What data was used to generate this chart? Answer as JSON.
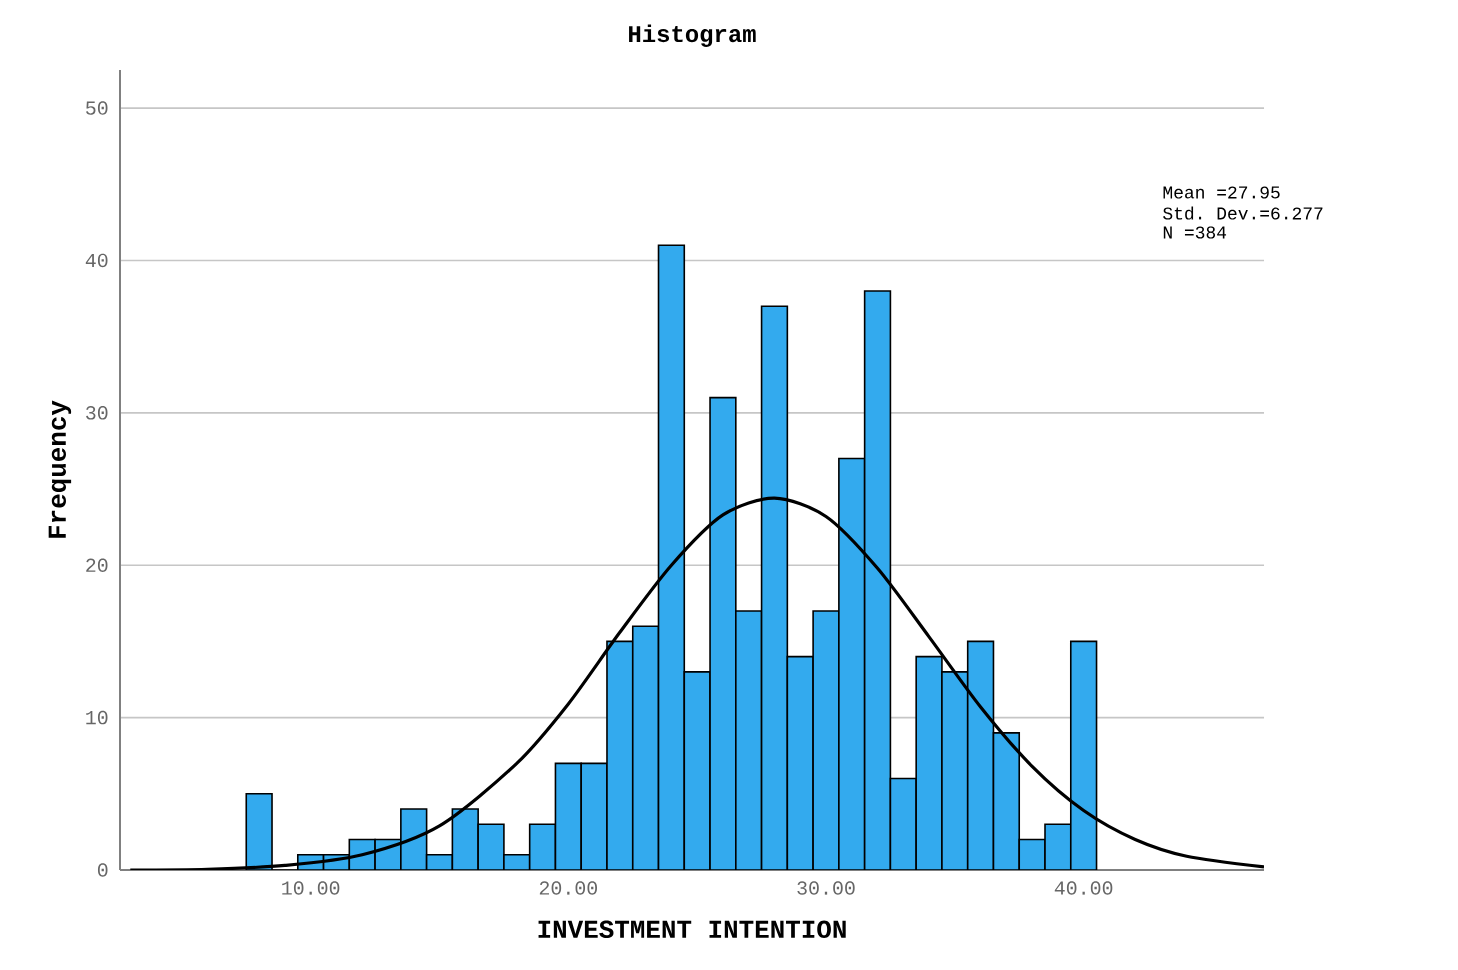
{
  "chart_data": {
    "type": "histogram",
    "title": "Histogram",
    "xlabel": "INVESTMENT INTENTION",
    "ylabel": "Frequency",
    "bins": [
      7.5,
      8.5,
      9.5,
      10.5,
      11.5,
      12.5,
      13.5,
      14.5,
      15.5,
      16.5,
      17.5,
      18.5,
      19.5,
      20.5,
      21.5,
      22.5,
      23.5,
      24.5,
      25.5,
      26.5,
      27.5,
      28.5,
      29.5,
      30.5,
      31.5,
      32.5,
      33.5,
      34.5,
      35.5,
      36.5,
      37.5,
      38.5,
      39.5,
      40.5
    ],
    "values": [
      5,
      0,
      1,
      1,
      2,
      2,
      4,
      1,
      4,
      3,
      1,
      3,
      7,
      7,
      15,
      16,
      41,
      13,
      31,
      17,
      37,
      14,
      17,
      27,
      38,
      6,
      14,
      13,
      15,
      9,
      2,
      3,
      15
    ],
    "color": "#33aaee",
    "series": [
      {
        "type": "line",
        "color": "#000000",
        "x": [
          3,
          6,
          9,
          12,
          15,
          18,
          20,
          22,
          24,
          26,
          28,
          30,
          32,
          34,
          36,
          38,
          40,
          42,
          44,
          47
        ],
        "values": [
          0.0,
          0.05,
          0.3,
          1.0,
          2.9,
          7.0,
          10.9,
          15.6,
          20.0,
          23.3,
          24.4,
          23.2,
          19.8,
          15.3,
          10.7,
          6.8,
          3.9,
          2.0,
          0.9,
          0.2
        ]
      }
    ],
    "xlim": [
      2.6,
      47
    ],
    "ylim": [
      0,
      52.5
    ],
    "xticks": [
      {
        "value": 10,
        "label": "10.00"
      },
      {
        "value": 20,
        "label": "20.00"
      },
      {
        "value": 30,
        "label": "30.00"
      },
      {
        "value": 40,
        "label": "40.00"
      }
    ],
    "yticks": [
      0,
      10,
      20,
      30,
      40,
      50
    ],
    "grid": "y",
    "annotations": [
      "Mean =27.95",
      "Std. Dev.=6.277",
      "N =384"
    ]
  }
}
